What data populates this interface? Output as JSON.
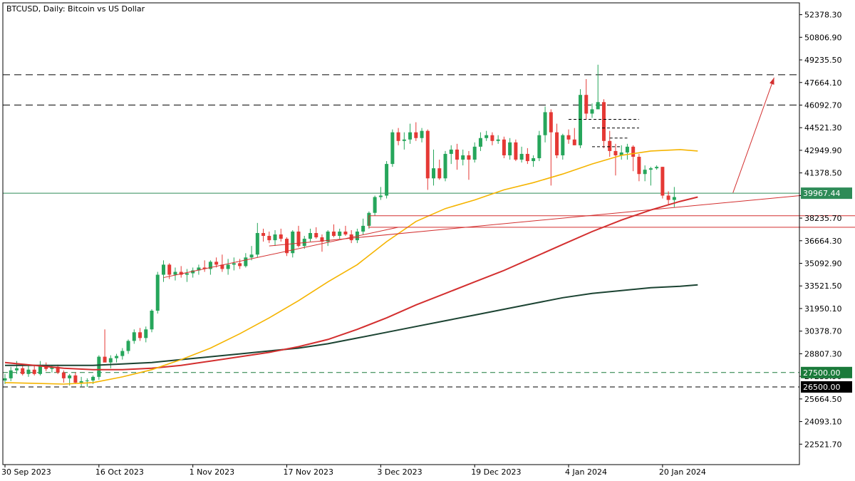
{
  "chart_data": {
    "type": "candlestick",
    "title": "BTCUSD, Daily:  Bitcoin vs US Dollar",
    "y_range": [
      21100,
      53200
    ],
    "y_ticks": [
      "52378.30",
      "50806.90",
      "49235.50",
      "47664.10",
      "46092.70",
      "44521.30",
      "42949.90",
      "41378.50",
      "39807.10",
      "38235.70",
      "36664.30",
      "35092.90",
      "33521.50",
      "31950.10",
      "30378.70",
      "28807.30",
      "27235.90",
      "25664.50",
      "24093.10",
      "22521.70"
    ],
    "x_ticks": [
      {
        "label": "30 Sep 2023",
        "bar": 0
      },
      {
        "label": "16 Oct 2023",
        "bar": 16
      },
      {
        "label": "1 Nov 2023",
        "bar": 32
      },
      {
        "label": "17 Nov 2023",
        "bar": 48
      },
      {
        "label": "3 Dec 2023",
        "bar": 64
      },
      {
        "label": "19 Dec 2023",
        "bar": 80
      },
      {
        "label": "4 Jan 2024",
        "bar": 96
      },
      {
        "label": "20 Jan 2024",
        "bar": 112
      }
    ],
    "ohlc": [
      [
        26950,
        27400,
        26700,
        27100
      ],
      [
        27100,
        27900,
        26900,
        27650
      ],
      [
        27650,
        28300,
        27400,
        27800
      ],
      [
        27800,
        28100,
        27300,
        27400
      ],
      [
        27400,
        28000,
        27200,
        27700
      ],
      [
        27700,
        28000,
        27300,
        27400
      ],
      [
        27400,
        28300,
        27300,
        28000
      ],
      [
        28000,
        28200,
        27600,
        27750
      ],
      [
        27750,
        28000,
        27500,
        27900
      ],
      [
        27900,
        28050,
        27400,
        27500
      ],
      [
        27500,
        27650,
        26800,
        27100
      ],
      [
        27100,
        27400,
        26600,
        27300
      ],
      [
        27300,
        27500,
        26700,
        26800
      ],
      [
        26800,
        27200,
        26500,
        26900
      ],
      [
        26900,
        27100,
        26500,
        26950
      ],
      [
        26950,
        27300,
        26700,
        27200
      ],
      [
        27200,
        28700,
        27000,
        28600
      ],
      [
        28600,
        30500,
        28300,
        28200
      ],
      [
        28200,
        28700,
        27800,
        28500
      ],
      [
        28500,
        28800,
        28200,
        28650
      ],
      [
        28650,
        29200,
        28400,
        29000
      ],
      [
        29000,
        29800,
        28800,
        29700
      ],
      [
        29700,
        30500,
        29500,
        30300
      ],
      [
        30300,
        30600,
        29700,
        29900
      ],
      [
        29900,
        30700,
        29600,
        30500
      ],
      [
        30500,
        31900,
        30300,
        31800
      ],
      [
        31800,
        34500,
        31600,
        34300
      ],
      [
        34300,
        35300,
        33800,
        35000
      ],
      [
        35000,
        35100,
        34000,
        34300
      ],
      [
        34300,
        34800,
        33900,
        34500
      ],
      [
        34500,
        34900,
        34100,
        34300
      ],
      [
        34300,
        34700,
        33800,
        34400
      ],
      [
        34400,
        34800,
        34100,
        34600
      ],
      [
        34600,
        35000,
        34300,
        34800
      ],
      [
        34800,
        35300,
        34500,
        34700
      ],
      [
        34700,
        35300,
        34300,
        35200
      ],
      [
        35200,
        35500,
        34800,
        35000
      ],
      [
        35000,
        35700,
        34500,
        34700
      ],
      [
        34700,
        35400,
        34300,
        35000
      ],
      [
        35000,
        35500,
        34600,
        35100
      ],
      [
        35100,
        35400,
        34700,
        34900
      ],
      [
        34900,
        35800,
        34800,
        35500
      ],
      [
        35500,
        36300,
        35300,
        35700
      ],
      [
        35700,
        37900,
        35500,
        37200
      ],
      [
        37200,
        37500,
        36600,
        37000
      ],
      [
        37000,
        37300,
        36500,
        36700
      ],
      [
        36700,
        37400,
        36300,
        37100
      ],
      [
        37100,
        37500,
        36600,
        36800
      ],
      [
        36800,
        36900,
        35600,
        35800
      ],
      [
        35800,
        37400,
        35500,
        37300
      ],
      [
        37300,
        37700,
        36200,
        36300
      ],
      [
        36300,
        37000,
        36100,
        36800
      ],
      [
        36800,
        37500,
        36600,
        37200
      ],
      [
        37200,
        37600,
        36800,
        36900
      ],
      [
        36900,
        37100,
        35900,
        36600
      ],
      [
        36600,
        37400,
        36300,
        37300
      ],
      [
        37300,
        37800,
        36900,
        37000
      ],
      [
        37000,
        37500,
        36800,
        37300
      ],
      [
        37300,
        37700,
        37000,
        37100
      ],
      [
        37100,
        37400,
        36500,
        36700
      ],
      [
        36700,
        37500,
        36500,
        37300
      ],
      [
        37300,
        38200,
        37100,
        37700
      ],
      [
        37700,
        38700,
        37500,
        38600
      ],
      [
        38600,
        39800,
        38400,
        39700
      ],
      [
        39700,
        40400,
        39500,
        39800
      ],
      [
        39800,
        42200,
        39600,
        42000
      ],
      [
        42000,
        44400,
        41800,
        44200
      ],
      [
        44200,
        44500,
        43300,
        43600
      ],
      [
        43600,
        44200,
        43000,
        43700
      ],
      [
        43700,
        44800,
        43400,
        44200
      ],
      [
        44200,
        44900,
        43600,
        43800
      ],
      [
        43800,
        44500,
        43500,
        44300
      ],
      [
        44300,
        44400,
        40200,
        41000
      ],
      [
        41000,
        43000,
        40500,
        41700
      ],
      [
        41700,
        42300,
        40900,
        41000
      ],
      [
        41000,
        42900,
        40800,
        42700
      ],
      [
        42700,
        43300,
        42000,
        43000
      ],
      [
        43000,
        43400,
        41600,
        42300
      ],
      [
        42300,
        43000,
        41900,
        42600
      ],
      [
        42600,
        42900,
        40900,
        42300
      ],
      [
        42300,
        43500,
        42100,
        43200
      ],
      [
        43200,
        44200,
        42900,
        43800
      ],
      [
        43800,
        44300,
        43600,
        44000
      ],
      [
        44000,
        44200,
        43300,
        43600
      ],
      [
        43600,
        44000,
        43400,
        43700
      ],
      [
        43700,
        43900,
        42400,
        42600
      ],
      [
        42600,
        43800,
        42300,
        43500
      ],
      [
        43500,
        43700,
        42200,
        42300
      ],
      [
        42300,
        43200,
        42100,
        42700
      ],
      [
        42700,
        43100,
        42000,
        42200
      ],
      [
        42200,
        42600,
        41800,
        42400
      ],
      [
        42400,
        44300,
        42200,
        44000
      ],
      [
        44000,
        46000,
        43500,
        45600
      ],
      [
        45600,
        45800,
        40500,
        44200
      ],
      [
        44200,
        44800,
        42400,
        42600
      ],
      [
        42600,
        44100,
        42300,
        44000
      ],
      [
        44000,
        44400,
        43400,
        43700
      ],
      [
        43700,
        44500,
        43300,
        43300
      ],
      [
        43300,
        47200,
        43100,
        46800
      ],
      [
        46800,
        47900,
        45100,
        45500
      ],
      [
        45500,
        46200,
        45200,
        45800
      ],
      [
        45800,
        48900,
        46100,
        46300
      ],
      [
        46300,
        46500,
        43100,
        43600
      ],
      [
        43600,
        44300,
        42500,
        42900
      ],
      [
        42900,
        43400,
        41200,
        42600
      ],
      [
        42600,
        43300,
        42300,
        42800
      ],
      [
        42800,
        43400,
        42300,
        43200
      ],
      [
        43200,
        43300,
        41500,
        42500
      ],
      [
        42500,
        42700,
        40800,
        41300
      ],
      [
        41300,
        41900,
        40800,
        41600
      ],
      [
        41600,
        41800,
        40500,
        41700
      ],
      [
        41700,
        41900,
        41600,
        41800
      ],
      [
        41800,
        41800,
        39600,
        39800
      ],
      [
        39800,
        40100,
        39200,
        39500
      ],
      [
        39500,
        40400,
        39000,
        39700
      ]
    ],
    "ma_50": [
      [
        0,
        26800
      ],
      [
        5,
        26750
      ],
      [
        10,
        26700
      ],
      [
        15,
        26800
      ],
      [
        20,
        27200
      ],
      [
        25,
        27700
      ],
      [
        30,
        28400
      ],
      [
        35,
        29200
      ],
      [
        40,
        30200
      ],
      [
        45,
        31300
      ],
      [
        50,
        32500
      ],
      [
        55,
        33800
      ],
      [
        60,
        35000
      ],
      [
        65,
        36600
      ],
      [
        70,
        38000
      ],
      [
        75,
        38900
      ],
      [
        80,
        39500
      ],
      [
        85,
        40200
      ],
      [
        90,
        40700
      ],
      [
        95,
        41300
      ],
      [
        100,
        42000
      ],
      [
        105,
        42600
      ],
      [
        110,
        42900
      ],
      [
        115,
        43000
      ],
      [
        118,
        42900
      ]
    ],
    "ma_100": [
      [
        0,
        28200
      ],
      [
        5,
        28000
      ],
      [
        10,
        27800
      ],
      [
        15,
        27700
      ],
      [
        20,
        27700
      ],
      [
        25,
        27800
      ],
      [
        30,
        28000
      ],
      [
        35,
        28300
      ],
      [
        40,
        28600
      ],
      [
        45,
        28900
      ],
      [
        50,
        29300
      ],
      [
        55,
        29800
      ],
      [
        60,
        30500
      ],
      [
        65,
        31300
      ],
      [
        70,
        32200
      ],
      [
        75,
        33000
      ],
      [
        80,
        33800
      ],
      [
        85,
        34600
      ],
      [
        90,
        35500
      ],
      [
        95,
        36400
      ],
      [
        100,
        37300
      ],
      [
        105,
        38100
      ],
      [
        110,
        38800
      ],
      [
        115,
        39400
      ],
      [
        118,
        39700
      ]
    ],
    "ma_200": [
      [
        0,
        28000
      ],
      [
        5,
        28000
      ],
      [
        10,
        28000
      ],
      [
        15,
        28000
      ],
      [
        20,
        28100
      ],
      [
        25,
        28200
      ],
      [
        30,
        28400
      ],
      [
        35,
        28600
      ],
      [
        40,
        28800
      ],
      [
        45,
        29000
      ],
      [
        50,
        29200
      ],
      [
        55,
        29500
      ],
      [
        60,
        29900
      ],
      [
        65,
        30300
      ],
      [
        70,
        30700
      ],
      [
        75,
        31100
      ],
      [
        80,
        31500
      ],
      [
        85,
        31900
      ],
      [
        90,
        32300
      ],
      [
        95,
        32700
      ],
      [
        100,
        33000
      ],
      [
        105,
        33200
      ],
      [
        110,
        33400
      ],
      [
        115,
        33500
      ],
      [
        118,
        33600
      ]
    ],
    "current_price": "39967.44",
    "levels": [
      {
        "price": 48200,
        "style": "dashed",
        "color": "#000000"
      },
      {
        "price": 46100,
        "style": "dashed",
        "color": "#000000"
      },
      {
        "price": 27500,
        "style": "dashed-green",
        "color": "#1a7a3a",
        "label": "27500.00"
      },
      {
        "price": 26500,
        "style": "dashed-black",
        "color": "#000000",
        "label": "26500.00"
      }
    ],
    "trendlines": [
      {
        "from": [
          27,
          34100
        ],
        "to": [
          67,
          37600
        ],
        "color": "#d32f2f"
      },
      {
        "from": [
          45,
          36300
        ],
        "to": [
          138,
          39900
        ],
        "color": "#d32f2f"
      }
    ],
    "zone": {
      "from_bar": 62,
      "to_bar": 152,
      "y_top": 38400,
      "y_bottom": 37600,
      "color": "#d32f2f"
    },
    "arrow": {
      "from": [
        124,
        40000
      ],
      "to": [
        131,
        48000
      ],
      "color": "#d32f2f"
    },
    "stair_levels": [
      {
        "from": 96,
        "to": 108,
        "price": 45100
      },
      {
        "from": 100,
        "to": 108,
        "price": 44500
      },
      {
        "from": 103,
        "to": 106,
        "price": 43800
      },
      {
        "from": 100,
        "to": 105,
        "price": 43200
      }
    ],
    "colors": {
      "up": "#26a65b",
      "down": "#e53935",
      "ma_50": "#f5b400",
      "ma_100": "#d32f2f",
      "ma_200": "#1b4332",
      "price_line": "#2e8b57",
      "grid": "#ffffff"
    }
  }
}
